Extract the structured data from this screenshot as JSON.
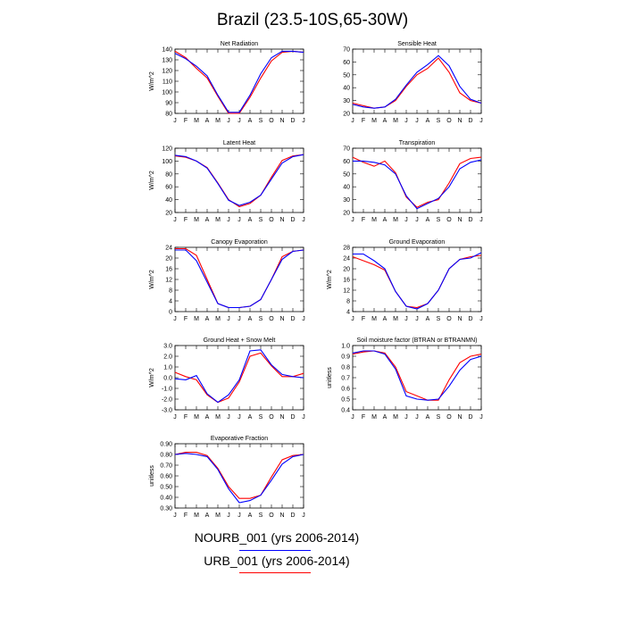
{
  "title": "Brazil (23.5-10S,65-30W)",
  "colors": {
    "nourb": "#0000ff",
    "urb": "#ff0000",
    "axis": "#000000"
  },
  "legend": {
    "nourb_label": "NOURB_001 (yrs 2006-2014)",
    "urb_label": "URB_001 (yrs 2006-2014)"
  },
  "chart_data": [
    {
      "type": "line",
      "title": "Net Radiation",
      "ylabel": "W/m^2",
      "categories": [
        "J",
        "F",
        "M",
        "A",
        "M",
        "J",
        "J",
        "A",
        "S",
        "O",
        "N",
        "D",
        "J"
      ],
      "ylim": [
        80,
        140
      ],
      "yticks": [
        80,
        90,
        100,
        110,
        120,
        130,
        140
      ],
      "series": [
        {
          "key": "nourb",
          "values": [
            136,
            131,
            124,
            115,
            97,
            81,
            81,
            97,
            117,
            132,
            138,
            138,
            137
          ]
        },
        {
          "key": "urb",
          "values": [
            138,
            132,
            122,
            113,
            96,
            80,
            80,
            95,
            113,
            129,
            137,
            138,
            137
          ]
        }
      ]
    },
    {
      "type": "line",
      "title": "Sensible Heat",
      "ylabel": "",
      "categories": [
        "J",
        "F",
        "M",
        "A",
        "M",
        "J",
        "J",
        "A",
        "S",
        "O",
        "N",
        "D",
        "J"
      ],
      "ylim": [
        20,
        70
      ],
      "yticks": [
        20,
        30,
        40,
        50,
        60,
        70
      ],
      "series": [
        {
          "key": "nourb",
          "values": [
            27,
            25,
            24,
            25,
            31,
            42,
            52,
            58,
            65,
            57,
            41,
            31,
            28
          ]
        },
        {
          "key": "urb",
          "values": [
            28,
            26,
            24,
            25,
            30,
            41,
            50,
            55,
            63,
            52,
            36,
            30,
            28
          ]
        }
      ]
    },
    {
      "type": "line",
      "title": "Latent Heat",
      "ylabel": "W/m^2",
      "categories": [
        "J",
        "F",
        "M",
        "A",
        "M",
        "J",
        "J",
        "A",
        "S",
        "O",
        "N",
        "D",
        "J"
      ],
      "ylim": [
        20,
        120
      ],
      "yticks": [
        20,
        40,
        60,
        80,
        100,
        120
      ],
      "series": [
        {
          "key": "nourb",
          "values": [
            109,
            107,
            100,
            89,
            65,
            39,
            31,
            36,
            47,
            72,
            97,
            107,
            110
          ]
        },
        {
          "key": "urb",
          "values": [
            108,
            106,
            100,
            90,
            66,
            40,
            29,
            34,
            47,
            75,
            101,
            108,
            110
          ]
        }
      ]
    },
    {
      "type": "line",
      "title": "Transpiration",
      "ylabel": "",
      "categories": [
        "J",
        "F",
        "M",
        "A",
        "M",
        "J",
        "J",
        "A",
        "S",
        "O",
        "N",
        "D",
        "J"
      ],
      "ylim": [
        20,
        70
      ],
      "yticks": [
        20,
        30,
        40,
        50,
        60,
        70
      ],
      "series": [
        {
          "key": "nourb",
          "values": [
            60,
            60,
            59,
            57,
            50,
            33,
            23,
            27,
            31,
            40,
            54,
            59,
            61
          ]
        },
        {
          "key": "urb",
          "values": [
            63,
            59,
            56,
            60,
            51,
            32,
            24,
            28,
            30,
            43,
            58,
            62,
            63
          ]
        }
      ]
    },
    {
      "type": "line",
      "title": "Canopy Evaporation",
      "ylabel": "W/m^2",
      "categories": [
        "J",
        "F",
        "M",
        "A",
        "M",
        "J",
        "J",
        "A",
        "S",
        "O",
        "N",
        "D",
        "J"
      ],
      "ylim": [
        0,
        24
      ],
      "yticks": [
        0,
        4,
        8,
        12,
        16,
        20,
        24
      ],
      "series": [
        {
          "key": "nourb",
          "values": [
            23,
            23,
            19,
            11,
            3,
            1.5,
            1.5,
            2,
            4.5,
            12,
            19.5,
            22.5,
            23
          ]
        },
        {
          "key": "urb",
          "values": [
            23.5,
            23.5,
            21,
            12,
            3,
            1.5,
            1.5,
            2,
            4.5,
            12,
            20.5,
            22.5,
            23
          ]
        }
      ]
    },
    {
      "type": "line",
      "title": "Ground Evaporation",
      "ylabel": "W/m^2",
      "categories": [
        "J",
        "F",
        "M",
        "A",
        "M",
        "J",
        "J",
        "A",
        "S",
        "O",
        "N",
        "D",
        "J"
      ],
      "ylim": [
        4,
        28
      ],
      "yticks": [
        4,
        8,
        12,
        16,
        20,
        24,
        28
      ],
      "series": [
        {
          "key": "nourb",
          "values": [
            25.5,
            25.5,
            23,
            20,
            11.5,
            6,
            5,
            7,
            12,
            20,
            23.5,
            24,
            26
          ]
        },
        {
          "key": "urb",
          "values": [
            24.5,
            23,
            21.5,
            19.5,
            11.5,
            6,
            5.5,
            7,
            12,
            20,
            23.5,
            24.5,
            25
          ]
        }
      ]
    },
    {
      "type": "line",
      "title": "Ground Heat + Snow Melt",
      "ylabel": "W/m^2",
      "categories": [
        "J",
        "F",
        "M",
        "A",
        "M",
        "J",
        "J",
        "A",
        "S",
        "O",
        "N",
        "D",
        "J"
      ],
      "ylim": [
        -3,
        3
      ],
      "yticks": [
        -3.0,
        -2.0,
        -1.0,
        0.0,
        1.0,
        2.0,
        3.0
      ],
      "series": [
        {
          "key": "nourb",
          "values": [
            -0.1,
            -0.2,
            0.2,
            -1.5,
            -2.3,
            -1.6,
            -0.2,
            2.5,
            2.6,
            1.2,
            0.3,
            0.1,
            0.0
          ]
        },
        {
          "key": "urb",
          "values": [
            0.5,
            0.1,
            -0.2,
            -1.6,
            -2.3,
            -1.9,
            -0.4,
            2.0,
            2.3,
            1.1,
            0.1,
            0.1,
            0.4
          ]
        }
      ]
    },
    {
      "type": "line",
      "title": "Soil moisture factor (BTRAN or BTRANMN)",
      "ylabel": "unitless",
      "categories": [
        "J",
        "F",
        "M",
        "A",
        "M",
        "J",
        "J",
        "A",
        "S",
        "O",
        "N",
        "D",
        "J"
      ],
      "ylim": [
        0.4,
        1.0
      ],
      "yticks": [
        0.4,
        0.5,
        0.6,
        0.7,
        0.8,
        0.9,
        1.0
      ],
      "series": [
        {
          "key": "nourb",
          "values": [
            0.93,
            0.95,
            0.95,
            0.92,
            0.78,
            0.53,
            0.5,
            0.49,
            0.5,
            0.62,
            0.77,
            0.87,
            0.9
          ]
        },
        {
          "key": "urb",
          "values": [
            0.92,
            0.94,
            0.95,
            0.93,
            0.8,
            0.57,
            0.53,
            0.49,
            0.49,
            0.68,
            0.84,
            0.9,
            0.92
          ]
        }
      ]
    },
    {
      "type": "line",
      "title": "Evaporative Fraction",
      "ylabel": "unitless",
      "categories": [
        "J",
        "F",
        "M",
        "A",
        "M",
        "J",
        "J",
        "A",
        "S",
        "O",
        "N",
        "D",
        "J"
      ],
      "ylim": [
        0.3,
        0.9
      ],
      "yticks": [
        0.3,
        0.4,
        0.5,
        0.6,
        0.7,
        0.8,
        0.9
      ],
      "series": [
        {
          "key": "nourb",
          "values": [
            0.8,
            0.81,
            0.8,
            0.78,
            0.66,
            0.48,
            0.35,
            0.37,
            0.42,
            0.56,
            0.71,
            0.78,
            0.8
          ]
        },
        {
          "key": "urb",
          "values": [
            0.8,
            0.82,
            0.82,
            0.79,
            0.67,
            0.5,
            0.39,
            0.39,
            0.42,
            0.59,
            0.75,
            0.79,
            0.8
          ]
        }
      ]
    }
  ]
}
